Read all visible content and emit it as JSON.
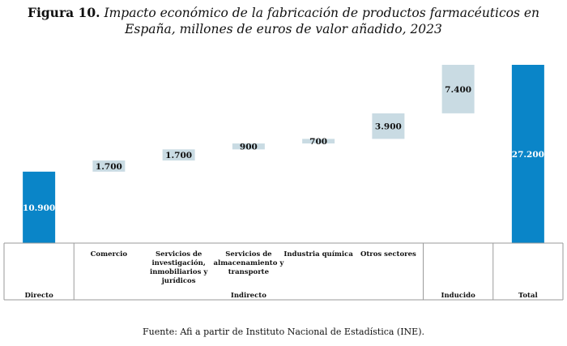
{
  "title": {
    "figure_label": "Figura 10.",
    "text": "Impacto económico de la fabricación de productos farmacéuticos en España, millones de euros de valor añadido, 2023"
  },
  "source": "Fuente: Afi a partir de Instituto Nacional de Estadística (INE).",
  "colors": {
    "total_bar": "#0a85c8",
    "step_bar": "#c9dbe3",
    "grid": "#9a9a9a"
  },
  "chart_data": {
    "type": "bar",
    "subtype": "waterfall",
    "categories": [
      "Directo",
      "Comercio",
      "Servicios de investigación, inmobiliarios y jurídicos",
      "Servicios de almacenamiento y transporte",
      "Industria química",
      "Otros sectores",
      "Inducido",
      "Total"
    ],
    "category_lines": [
      [
        "Directo"
      ],
      [
        "Comercio"
      ],
      [
        "Servicios de",
        "investigación,",
        "inmobiliarios y",
        "jurídicos"
      ],
      [
        "Servicios de",
        "almacenamiento y",
        "transporte"
      ],
      [
        "Industria química"
      ],
      [
        "Otros sectores"
      ],
      [
        "Inducido"
      ],
      [
        "Total"
      ]
    ],
    "groups": [
      {
        "label": "Directo",
        "span": [
          0,
          0
        ]
      },
      {
        "label": "Indirecto",
        "span": [
          1,
          5
        ]
      },
      {
        "label": "Inducido",
        "span": [
          6,
          6
        ]
      },
      {
        "label": "Total",
        "span": [
          7,
          7
        ]
      }
    ],
    "values": [
      10900,
      1700,
      1700,
      900,
      700,
      3900,
      7400,
      27200
    ],
    "value_labels": [
      "10.900",
      "1.700",
      "1.700",
      "900",
      "700",
      "3.900",
      "7.400",
      "27.200"
    ],
    "bar_kind": [
      "total",
      "step",
      "step",
      "step",
      "step",
      "step",
      "step",
      "total"
    ],
    "ylim": [
      0,
      27200
    ],
    "xlabel": "",
    "ylabel": "",
    "grid": false,
    "legend": "none"
  }
}
